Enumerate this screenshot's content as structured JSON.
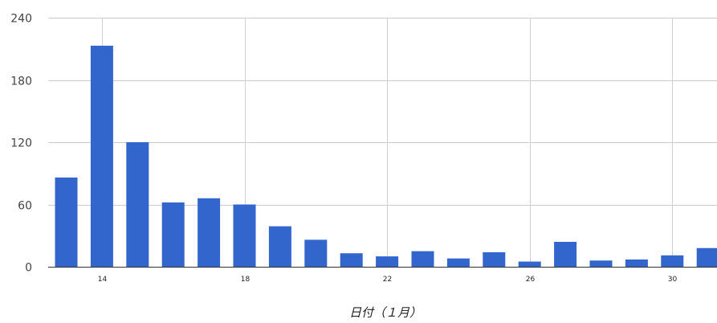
{
  "colors": {
    "bar": "#3366cc",
    "grid": "#cccccc",
    "text": "#444444"
  },
  "chart_data": {
    "type": "bar",
    "x": [
      13,
      14,
      15,
      16,
      17,
      18,
      19,
      20,
      21,
      22,
      23,
      24,
      25,
      26,
      27,
      28,
      29,
      30,
      31
    ],
    "values": [
      86,
      213,
      120,
      62,
      66,
      60,
      39,
      26,
      13,
      10,
      15,
      8,
      14,
      5,
      24,
      6,
      7,
      11,
      18
    ],
    "xticks": [
      "14",
      "18",
      "22",
      "26",
      "30"
    ],
    "yticks": [
      "0",
      "60",
      "120",
      "180",
      "240"
    ],
    "ylim": [
      0,
      240
    ],
    "xlabel": "日付（１月）",
    "ylabel": "",
    "title": "",
    "grid": true,
    "legend": "none"
  }
}
